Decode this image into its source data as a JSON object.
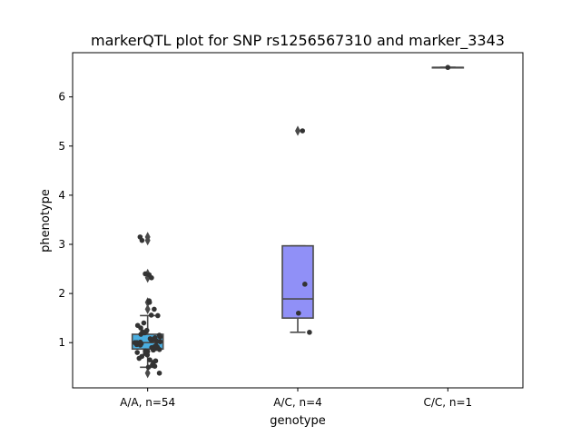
{
  "chart_data": {
    "type": "box",
    "title": "markerQTL plot for SNP rs1256567310 and marker_3343",
    "xlabel": "genotype",
    "ylabel": "phenotype",
    "ylim": [
      0.08,
      6.9
    ],
    "yticks": [
      1,
      2,
      3,
      4,
      5,
      6
    ],
    "categories": [
      "A/A, n=54",
      "A/C, n=4",
      "C/C, n=1"
    ],
    "box_colors": [
      "#4aaee0",
      "#9090f7",
      "#87c487"
    ],
    "boxes": [
      {
        "category": "A/A, n=54",
        "whisker_low": 0.5,
        "q1": 0.87,
        "median": 1.0,
        "q3": 1.17,
        "whisker_high": 1.55,
        "outliers": [
          0.38,
          1.68,
          1.82,
          2.32,
          2.4,
          3.08,
          3.15
        ]
      },
      {
        "category": "A/C, n=4",
        "whisker_low": 1.21,
        "q1": 1.5,
        "median": 1.89,
        "q3": 2.97,
        "whisker_high": 2.97,
        "outliers": [
          5.31
        ]
      },
      {
        "category": "C/C, n=1",
        "whisker_low": 6.6,
        "q1": 6.6,
        "median": 6.6,
        "q3": 6.6,
        "whisker_high": 6.6,
        "outliers": []
      }
    ],
    "points": [
      {
        "group": 0,
        "values": [
          0.38,
          0.5,
          0.52,
          0.55,
          0.6,
          0.63,
          0.65,
          0.68,
          0.72,
          0.75,
          0.78,
          0.8,
          0.82,
          0.83,
          0.85,
          0.86,
          0.87,
          0.88,
          0.9,
          0.91,
          0.92,
          0.94,
          0.95,
          0.96,
          0.97,
          0.98,
          1.0,
          1.0,
          1.01,
          1.02,
          1.03,
          1.05,
          1.06,
          1.08,
          1.1,
          1.12,
          1.15,
          1.17,
          1.2,
          1.22,
          1.25,
          1.3,
          1.35,
          1.4,
          1.55,
          1.56,
          1.68,
          1.82,
          1.85,
          2.32,
          2.38,
          2.4,
          3.08,
          3.15
        ]
      },
      {
        "group": 1,
        "values": [
          1.21,
          1.6,
          2.19,
          5.31
        ]
      },
      {
        "group": 2,
        "values": [
          6.6
        ]
      }
    ]
  }
}
